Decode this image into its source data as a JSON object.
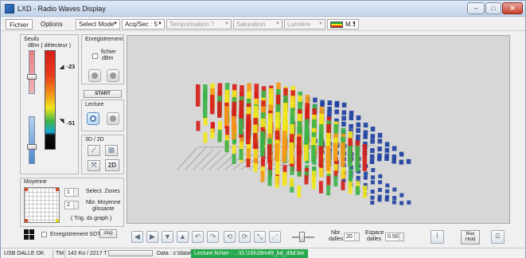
{
  "window": {
    "title": "LXD - Radio Waves Display",
    "controls": {
      "minimize": "–",
      "maximize": "□",
      "close": "✕"
    }
  },
  "menu": {
    "file": "Fichier",
    "options": "Options",
    "mode": "Select Mode",
    "acq": "Acq/Sec : 5",
    "temporisation": "Temporisation ?",
    "saturation": "Saturation",
    "lumiere": "Lumière",
    "palette": "M.1"
  },
  "seuils": {
    "title": "Seuils",
    "subtitle": "dBm ( détecteur )",
    "upper_value": "-23",
    "lower_value": "-51"
  },
  "enregistrement": {
    "title": "Enregistrement",
    "checkbox_label_1": "fichier",
    "checkbox_label_2": "dBm",
    "start": "START"
  },
  "lecture": {
    "title": "Lecture"
  },
  "view3d": {
    "title": "3D / 2D",
    "btn_2d": "2D"
  },
  "moyenne": {
    "title": "Moyenne",
    "select_zones_value": "1",
    "select_zones_label": "Select. Zones",
    "nbr_moyenne_value": "2",
    "nbr_moyenne_label_1": "Nbr. Moyenne",
    "nbr_moyenne_label_2": "glissante",
    "trig_label": "( Trig. ds graph )"
  },
  "sdt": {
    "label": "Enregistrement SDT",
    "stop": "stop"
  },
  "toolbar": {
    "dalles_label_1": "Nbr.",
    "dalles_label_2": "dalles",
    "dalles_value": "20",
    "espace_label_1": "Espace",
    "espace_label_2": "dalles",
    "espace_value": "0.50",
    "max_hold_1": "Max",
    "max_hold_2": "Hold"
  },
  "status": {
    "usb": "USB DALLE OK",
    "tm": "TM",
    "size": "142 Ko / 2217 T",
    "data_path": "Data : c:\\data\\",
    "file": "Lecture fichier : ...\\G:\\16h28m49_bd_d3d.bin"
  },
  "icons": {
    "toolbar": [
      "arrow-left-icon",
      "arrow-right-icon",
      "arrow-down-icon",
      "arrow-up-icon",
      "rotate-left-icon",
      "rotate-right-icon",
      "undo-icon",
      "redo-icon",
      "shrink-icon",
      "expand-icon"
    ],
    "grid_view": "grid-view-icon",
    "chart_icon": "line-chart-icon",
    "table_icon": "table-icon"
  },
  "colors": {
    "red": "#d51f1a",
    "orange": "#f39a1a",
    "yellow": "#f2e51c",
    "green": "#3cb34a",
    "blue": "#1c3ea0",
    "status_green": "#25a84b"
  }
}
